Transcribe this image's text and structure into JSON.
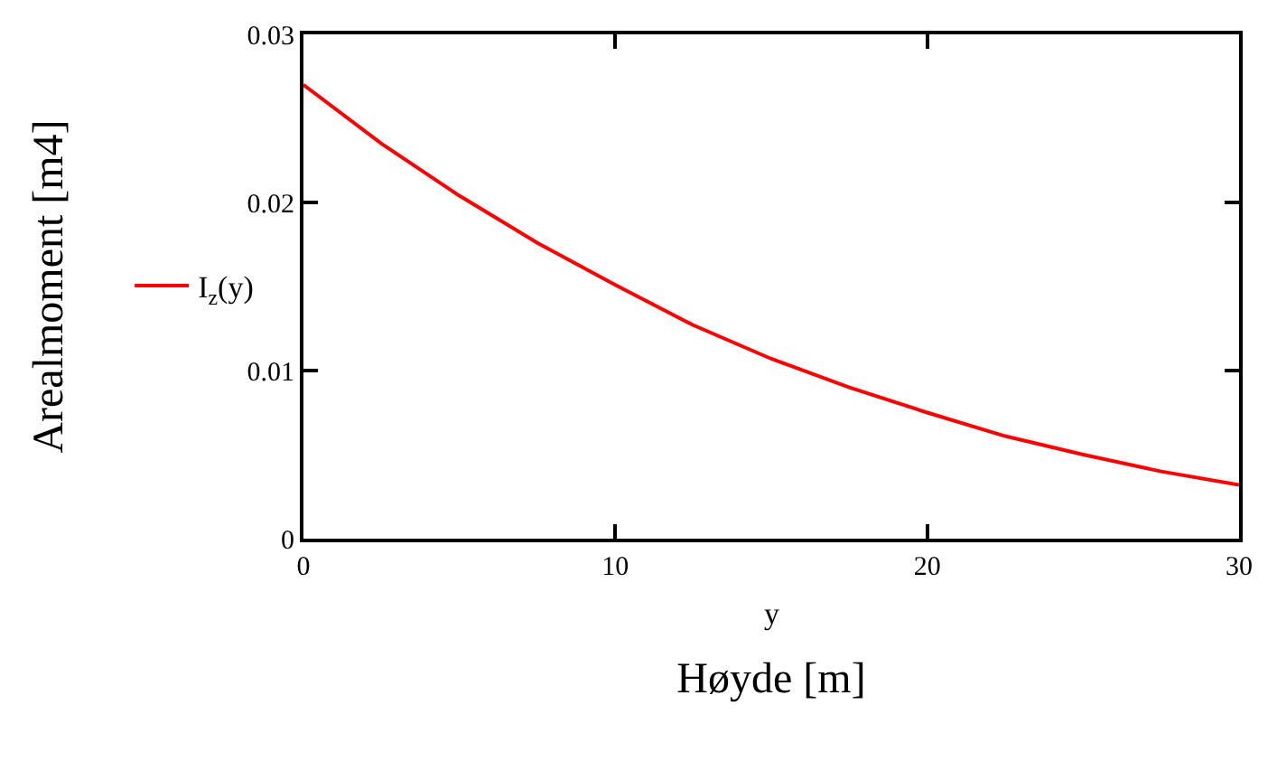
{
  "chart_data": {
    "type": "line",
    "xlabel": "Høyde [m]",
    "ylabel": "Arealmoment [m4]",
    "annotations": [
      "y"
    ],
    "series": [
      {
        "name": "I$_{z}$(y)",
        "color": "#ff0000",
        "x": [
          0,
          2.5,
          5,
          7.5,
          10,
          12.5,
          15,
          17.5,
          20,
          22.5,
          25,
          27.5,
          30
        ],
        "values": [
          0.027,
          0.0235,
          0.0204,
          0.0176,
          0.0151,
          0.0127,
          0.0107,
          0.009,
          0.0075,
          0.0061,
          0.005,
          0.004,
          0.0032
        ]
      }
    ],
    "xlim": [
      0,
      30
    ],
    "xticks": [
      0,
      10,
      20,
      30
    ],
    "ylim": [
      0,
      0.03
    ],
    "yticks": [
      0,
      0.01,
      0.02,
      0.03
    ],
    "legend": "left",
    "marker": "none",
    "line_style": "solid"
  }
}
